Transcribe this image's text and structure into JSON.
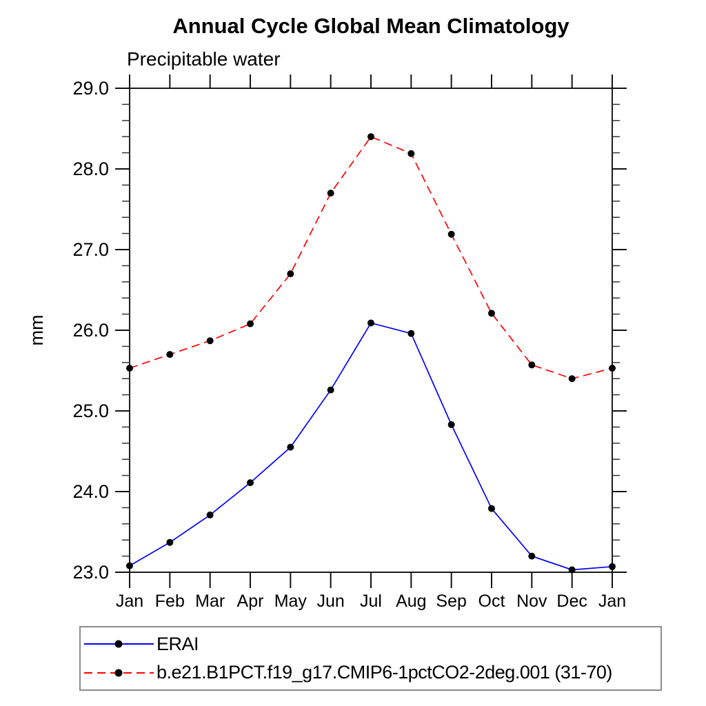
{
  "title": "Annual Cycle Global Mean Climatology",
  "subtitle": "Precipitable water",
  "chart_data": {
    "type": "line",
    "x": [
      "Jan",
      "Feb",
      "Mar",
      "Apr",
      "May",
      "Jun",
      "Jul",
      "Aug",
      "Sep",
      "Oct",
      "Nov",
      "Dec",
      "Jan"
    ],
    "title": "Annual Cycle Global Mean Climatology",
    "subtitle": "Precipitable water",
    "xlabel": "",
    "ylabel": "mm",
    "ylim": [
      23.0,
      29.0
    ],
    "y_major_step": 1.0,
    "y_minor_step": 0.2,
    "y_tick_labels": [
      "23.0",
      "24.0",
      "25.0",
      "26.0",
      "27.0",
      "28.0",
      "29.0"
    ],
    "grid": false,
    "frame": "box-with-mirrored-ticks",
    "legend_position": "bottom-left-box",
    "marker": "filled-circle",
    "marker_color": "#000000",
    "series": [
      {
        "name": "ERAI",
        "color": "#0000ff",
        "line_style": "solid",
        "values": [
          23.08,
          23.37,
          23.71,
          24.11,
          24.55,
          25.26,
          26.09,
          25.96,
          24.83,
          23.79,
          23.2,
          23.03,
          23.07
        ]
      },
      {
        "name": "b.e21.B1PCT.f19_g17.CMIP6-1pctCO2-2deg.001 (31-70)",
        "color": "#ff0000",
        "line_style": "dashed",
        "values": [
          25.53,
          25.7,
          25.87,
          26.08,
          26.7,
          27.7,
          28.4,
          28.19,
          27.19,
          26.21,
          25.57,
          25.4,
          25.53
        ]
      }
    ]
  },
  "axis_colors": {
    "frame": "#1a1a1a",
    "major_tick": "#111111",
    "minor_tick": "#333333",
    "label": "#000000"
  }
}
